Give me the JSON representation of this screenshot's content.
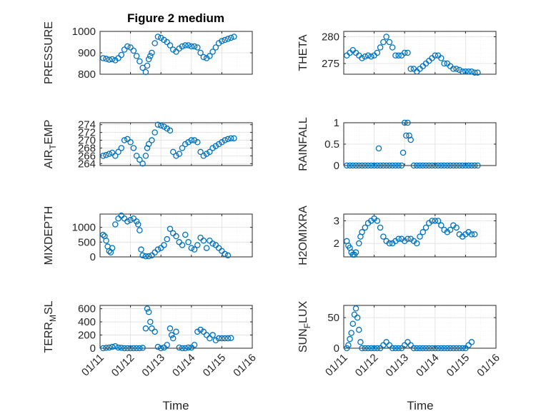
{
  "figure": {
    "title": "Figure 2 medium",
    "xlabel": "Time",
    "x_ticks": [
      "01/11",
      "01/12",
      "01/13",
      "01/14",
      "01/15",
      "01/16"
    ],
    "marker_color": "#0072BD"
  },
  "chart_data": [
    {
      "type": "scatter",
      "ylabel": "PRESSURE",
      "xlim": [
        11,
        16
      ],
      "ylim": [
        800,
        1000
      ],
      "yticks": [
        800,
        900,
        1000
      ],
      "grid": true,
      "x": [
        11.1,
        11.2,
        11.3,
        11.4,
        11.5,
        11.6,
        11.7,
        11.8,
        11.9,
        12.0,
        12.1,
        12.2,
        12.3,
        12.4,
        12.5,
        12.55,
        12.6,
        12.65,
        12.7,
        12.8,
        12.9,
        13.0,
        13.1,
        13.2,
        13.3,
        13.4,
        13.5,
        13.6,
        13.7,
        13.8,
        13.9,
        14.0,
        14.1,
        14.2,
        14.3,
        14.4,
        14.5,
        14.6,
        14.7,
        14.8,
        14.9,
        15.0,
        15.1,
        15.2,
        15.3,
        15.4
      ],
      "y": [
        875,
        872,
        868,
        870,
        865,
        875,
        890,
        915,
        930,
        925,
        910,
        885,
        860,
        830,
        810,
        840,
        870,
        885,
        900,
        945,
        975,
        970,
        960,
        950,
        935,
        915,
        905,
        920,
        930,
        935,
        935,
        930,
        930,
        925,
        900,
        880,
        875,
        885,
        905,
        925,
        945,
        955,
        960,
        965,
        970,
        975
      ]
    },
    {
      "type": "scatter",
      "ylabel": "THETA",
      "xlim": [
        11,
        16
      ],
      "ylim": [
        273,
        281
      ],
      "yticks": [
        275,
        280
      ],
      "grid": true,
      "x": [
        11.1,
        11.2,
        11.3,
        11.4,
        11.5,
        11.6,
        11.7,
        11.8,
        11.9,
        12.0,
        12.1,
        12.2,
        12.3,
        12.4,
        12.5,
        12.6,
        12.7,
        12.8,
        12.9,
        13.0,
        13.1,
        13.2,
        13.3,
        13.4,
        13.5,
        13.6,
        13.7,
        13.8,
        13.9,
        14.0,
        14.1,
        14.2,
        14.3,
        14.4,
        14.5,
        14.6,
        14.7,
        14.8,
        14.9,
        15.0,
        15.1,
        15.2,
        15.3,
        15.4
      ],
      "y": [
        276.5,
        277,
        277.5,
        277,
        276.5,
        276,
        276.3,
        276.5,
        276.3,
        276.5,
        277,
        278,
        279,
        280,
        279,
        278,
        276.5,
        276.5,
        276.5,
        277,
        277,
        274,
        274,
        273.5,
        274,
        274.5,
        275,
        275.5,
        276,
        276.5,
        276.5,
        276,
        275,
        275,
        274.5,
        274,
        274,
        273.8,
        273.5,
        273.5,
        273.5,
        273.5,
        273.3,
        273.3
      ]
    },
    {
      "type": "scatter",
      "ylabel": "AIR_TEMP",
      "xlim": [
        11,
        16
      ],
      "ylim": [
        263.5,
        274.5
      ],
      "yticks": [
        264,
        266,
        268,
        270,
        272,
        274
      ],
      "grid": true,
      "x": [
        11.1,
        11.2,
        11.3,
        11.4,
        11.5,
        11.6,
        11.7,
        11.8,
        11.9,
        12.0,
        12.1,
        12.2,
        12.3,
        12.4,
        12.5,
        12.55,
        12.6,
        12.7,
        12.8,
        12.9,
        13.0,
        13.1,
        13.2,
        13.3,
        13.4,
        13.5,
        13.6,
        13.7,
        13.8,
        13.9,
        14.0,
        14.1,
        14.2,
        14.3,
        14.4,
        14.5,
        14.6,
        14.7,
        14.8,
        14.9,
        15.0,
        15.1,
        15.2,
        15.3,
        15.4
      ],
      "y": [
        266,
        266.2,
        266.5,
        266.8,
        266,
        267,
        268,
        270,
        270.3,
        269.5,
        268,
        266,
        265,
        264,
        266,
        268,
        269,
        270,
        272,
        274,
        273.8,
        273.5,
        273,
        272.5,
        267,
        266,
        266.5,
        268,
        269,
        269.5,
        270,
        270,
        269.5,
        267,
        266,
        266.5,
        267,
        268,
        268.5,
        269,
        269.5,
        270,
        270.3,
        270.5,
        270.5
      ]
    },
    {
      "type": "scatter",
      "ylabel": "RAINFALL",
      "xlim": [
        11,
        16
      ],
      "ylim": [
        0,
        1
      ],
      "yticks": [
        0,
        0.5,
        1
      ],
      "grid": true,
      "x": [
        11.1,
        11.2,
        11.3,
        11.4,
        11.5,
        11.6,
        11.7,
        11.8,
        11.9,
        12.0,
        12.1,
        12.15,
        12.2,
        12.3,
        12.4,
        12.5,
        12.6,
        12.7,
        12.8,
        12.9,
        12.95,
        13.0,
        13.05,
        13.1,
        13.15,
        13.2,
        13.3,
        13.4,
        13.5,
        13.6,
        13.7,
        13.8,
        13.9,
        14.0,
        14.1,
        14.2,
        14.3,
        14.4,
        14.5,
        14.6,
        14.7,
        14.8,
        14.9,
        15.0,
        15.1,
        15.2,
        15.3,
        15.4
      ],
      "y": [
        0,
        0,
        0,
        0,
        0,
        0,
        0,
        0,
        0,
        0,
        0,
        0.4,
        0,
        0,
        0,
        0,
        0,
        0,
        0,
        0,
        0.3,
        1,
        0.7,
        1,
        0.7,
        0.6,
        0,
        0,
        0,
        0,
        0,
        0,
        0,
        0,
        0,
        0,
        0,
        0,
        0,
        0,
        0,
        0,
        0,
        0,
        0,
        0,
        0,
        0
      ]
    },
    {
      "type": "scatter",
      "ylabel": "MIXDEPTH",
      "xlim": [
        11,
        16
      ],
      "ylim": [
        0,
        1450
      ],
      "yticks": [
        0,
        500,
        1000
      ],
      "grid": true,
      "x": [
        11.1,
        11.15,
        11.2,
        11.25,
        11.3,
        11.35,
        11.4,
        11.5,
        11.6,
        11.7,
        11.8,
        11.9,
        12.0,
        12.1,
        12.2,
        12.25,
        12.3,
        12.35,
        12.4,
        12.5,
        12.6,
        12.7,
        12.8,
        12.9,
        13.0,
        13.1,
        13.2,
        13.3,
        13.4,
        13.5,
        13.6,
        13.7,
        13.8,
        13.9,
        14.0,
        14.1,
        14.2,
        14.3,
        14.4,
        14.5,
        14.6,
        14.7,
        14.8,
        14.9,
        15.0,
        15.1,
        15.2
      ],
      "y": [
        750,
        700,
        550,
        350,
        200,
        150,
        300,
        1100,
        1300,
        1400,
        1300,
        1200,
        1250,
        1300,
        1200,
        1100,
        900,
        250,
        50,
        20,
        20,
        50,
        150,
        250,
        300,
        400,
        600,
        950,
        800,
        700,
        500,
        400,
        750,
        500,
        300,
        250,
        400,
        650,
        550,
        300,
        550,
        450,
        400,
        300,
        200,
        100,
        50
      ]
    },
    {
      "type": "scatter",
      "ylabel": "H2OMIXRA",
      "xlim": [
        11,
        16
      ],
      "ylim": [
        1.4,
        3.3
      ],
      "yticks": [
        2,
        3
      ],
      "grid": true,
      "x": [
        11.1,
        11.15,
        11.2,
        11.25,
        11.3,
        11.35,
        11.4,
        11.5,
        11.55,
        11.6,
        11.7,
        11.8,
        11.9,
        12.0,
        12.1,
        12.2,
        12.3,
        12.4,
        12.5,
        12.6,
        12.7,
        12.8,
        12.9,
        13.0,
        13.1,
        13.2,
        13.3,
        13.4,
        13.5,
        13.6,
        13.7,
        13.8,
        13.9,
        14.0,
        14.1,
        14.2,
        14.3,
        14.4,
        14.5,
        14.6,
        14.7,
        14.8,
        14.9,
        15.0,
        15.1,
        15.2,
        15.3
      ],
      "y": [
        2.1,
        1.9,
        1.8,
        1.6,
        1.5,
        1.5,
        1.6,
        2.0,
        2.3,
        2.5,
        2.7,
        2.9,
        3.0,
        3.1,
        3.0,
        2.7,
        2.3,
        2.1,
        2.0,
        2.0,
        2.1,
        2.2,
        2.2,
        2.1,
        2.2,
        2.2,
        2.1,
        2.0,
        2.3,
        2.5,
        2.7,
        2.9,
        3.0,
        3.0,
        3.0,
        2.8,
        2.6,
        2.5,
        2.6,
        2.8,
        2.7,
        2.4,
        2.3,
        2.4,
        2.5,
        2.4,
        2.4
      ]
    },
    {
      "type": "scatter",
      "ylabel": "TERR_MSL",
      "xlim": [
        11,
        16
      ],
      "ylim": [
        0,
        650
      ],
      "yticks": [
        0,
        200,
        400,
        600
      ],
      "grid": true,
      "x": [
        11.1,
        11.2,
        11.3,
        11.4,
        11.5,
        11.6,
        11.7,
        11.8,
        11.9,
        12.0,
        12.1,
        12.2,
        12.3,
        12.4,
        12.5,
        12.55,
        12.6,
        12.65,
        12.7,
        12.8,
        12.9,
        13.0,
        13.1,
        13.2,
        13.3,
        13.35,
        13.4,
        13.5,
        13.6,
        13.7,
        13.8,
        13.9,
        14.0,
        14.1,
        14.2,
        14.3,
        14.4,
        14.5,
        14.6,
        14.7,
        14.8,
        14.9,
        15.0,
        15.1,
        15.2,
        15.3
      ],
      "y": [
        0,
        5,
        10,
        20,
        30,
        10,
        5,
        0,
        0,
        0,
        0,
        0,
        0,
        5,
        300,
        600,
        550,
        400,
        300,
        250,
        20,
        0,
        10,
        50,
        300,
        200,
        150,
        250,
        10,
        0,
        0,
        10,
        10,
        50,
        250,
        280,
        250,
        200,
        150,
        200,
        120,
        150,
        150,
        150,
        150,
        155
      ]
    },
    {
      "type": "scatter",
      "ylabel": "SUN_FLUX",
      "xlim": [
        11,
        16
      ],
      "ylim": [
        0,
        70
      ],
      "yticks": [
        0,
        50
      ],
      "grid": true,
      "x": [
        11.1,
        11.15,
        11.2,
        11.25,
        11.3,
        11.35,
        11.4,
        11.45,
        11.5,
        11.55,
        11.6,
        11.7,
        11.8,
        11.9,
        12.0,
        12.1,
        12.2,
        12.3,
        12.4,
        12.5,
        12.6,
        12.7,
        12.8,
        12.9,
        13.0,
        13.1,
        13.2,
        13.3,
        13.4,
        13.5,
        13.6,
        13.7,
        13.8,
        13.9,
        14.0,
        14.1,
        14.2,
        14.3,
        14.4,
        14.5,
        14.6,
        14.7,
        14.8,
        14.9,
        15.0,
        15.1,
        15.2
      ],
      "y": [
        0,
        5,
        15,
        25,
        40,
        55,
        65,
        50,
        30,
        10,
        0,
        0,
        0,
        0,
        0,
        0,
        0,
        5,
        10,
        5,
        0,
        0,
        0,
        0,
        5,
        10,
        5,
        0,
        0,
        0,
        0,
        0,
        0,
        0,
        0,
        0,
        0,
        0,
        0,
        0,
        0,
        0,
        0,
        0,
        0,
        5,
        10
      ]
    }
  ]
}
